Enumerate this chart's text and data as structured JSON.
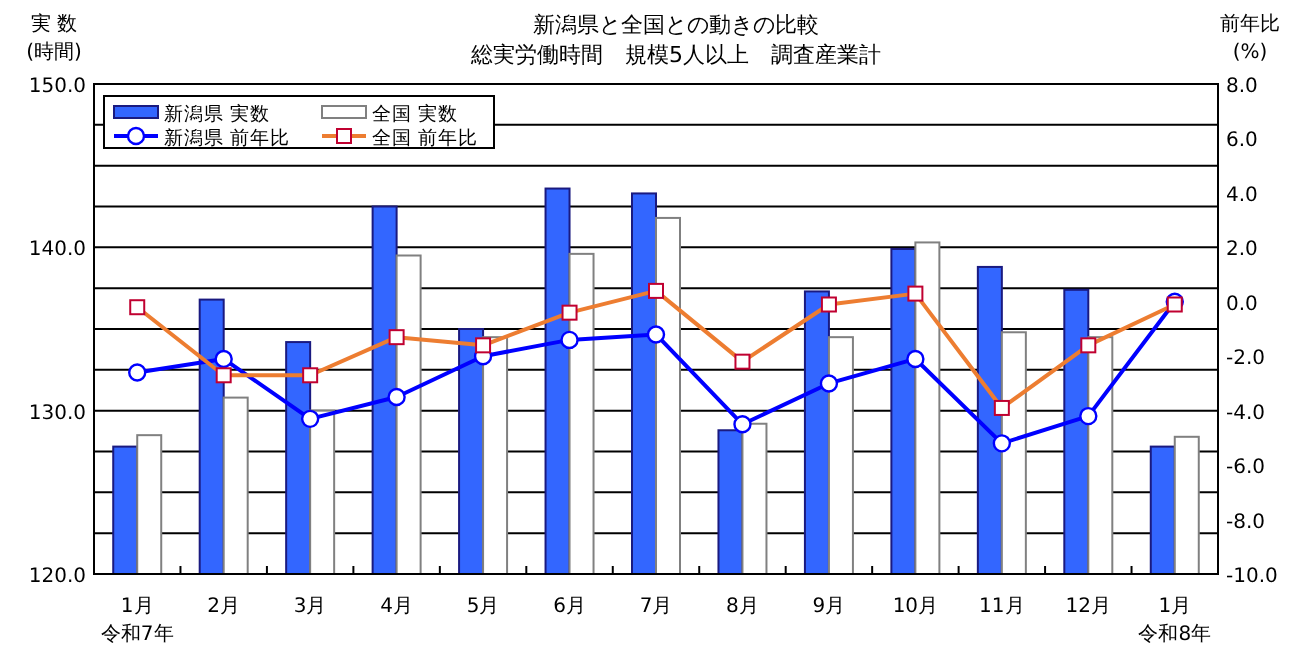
{
  "chart_data": {
    "type": "bar",
    "title": "新潟県と全国との動きの比較",
    "subtitle": "総実労働時間　規模5人以上　調査産業計",
    "ylabel": "実 数\n(時間)",
    "y2label": "前年比\n(%)",
    "categories": [
      "1月",
      "2月",
      "3月",
      "4月",
      "5月",
      "6月",
      "7月",
      "8月",
      "9月",
      "10月",
      "11月",
      "12月",
      "1月"
    ],
    "annotations": [
      "令和7年",
      "令和8年"
    ],
    "series": [
      {
        "name": "新潟県  実数",
        "color": "#3366ff",
        "values": [
          127.8,
          136.8,
          134.2,
          142.5,
          135.0,
          143.6,
          143.3,
          128.8,
          137.3,
          139.9,
          138.8,
          137.4,
          127.8
        ]
      },
      {
        "name": "全国  実数",
        "color": "#ffffff",
        "values": [
          128.5,
          130.8,
          130.0,
          139.5,
          134.5,
          139.6,
          141.8,
          129.2,
          134.5,
          140.3,
          134.8,
          134.5,
          128.4
        ]
      },
      {
        "name": "新潟県  前年比",
        "type": "line",
        "axis": "y2",
        "color": "#0000ff",
        "marker": "circle",
        "values": [
          -2.6,
          -2.1,
          -4.3,
          -3.5,
          -2.0,
          -1.4,
          -1.2,
          -4.5,
          -3.0,
          -2.1,
          -5.2,
          -4.2,
          0.0
        ]
      },
      {
        "name": "全国  前年比",
        "type": "line",
        "axis": "y2",
        "color": "#ed7d31",
        "marker": "square",
        "values": [
          -0.2,
          -2.7,
          -2.7,
          -1.3,
          -1.6,
          -0.4,
          0.4,
          -2.2,
          -0.1,
          0.3,
          -3.9,
          -1.6,
          -0.1
        ]
      }
    ],
    "ylim": [
      120,
      150
    ],
    "yticks": [
      {
        "value": 120,
        "label": "120.0"
      },
      {
        "value": 122.5,
        "label": null
      },
      {
        "value": 125,
        "label": null
      },
      {
        "value": 127.5,
        "label": null
      },
      {
        "value": 130,
        "label": "130.0"
      },
      {
        "value": 132.5,
        "label": null
      },
      {
        "value": 135,
        "label": null
      },
      {
        "value": 137.5,
        "label": null
      },
      {
        "value": 140,
        "label": "140.0"
      },
      {
        "value": 142.5,
        "label": null
      },
      {
        "value": 145,
        "label": null
      },
      {
        "value": 147.5,
        "label": null
      },
      {
        "value": 150,
        "label": "150.0"
      }
    ],
    "y2lim": [
      -10,
      8
    ],
    "y2ticks": [
      {
        "value": -10,
        "label": "-10.0"
      },
      {
        "value": -8,
        "label": "-8.0"
      },
      {
        "value": -6,
        "label": "-6.0"
      },
      {
        "value": -4,
        "label": "-4.0"
      },
      {
        "value": -2,
        "label": "-2.0"
      },
      {
        "value": 0,
        "label": "0.0"
      },
      {
        "value": 2,
        "label": "2.0"
      },
      {
        "value": 4,
        "label": "4.0"
      },
      {
        "value": 6,
        "label": "6.0"
      },
      {
        "value": 8,
        "label": "8.0"
      }
    ],
    "grid": "y",
    "legend": "top left"
  }
}
